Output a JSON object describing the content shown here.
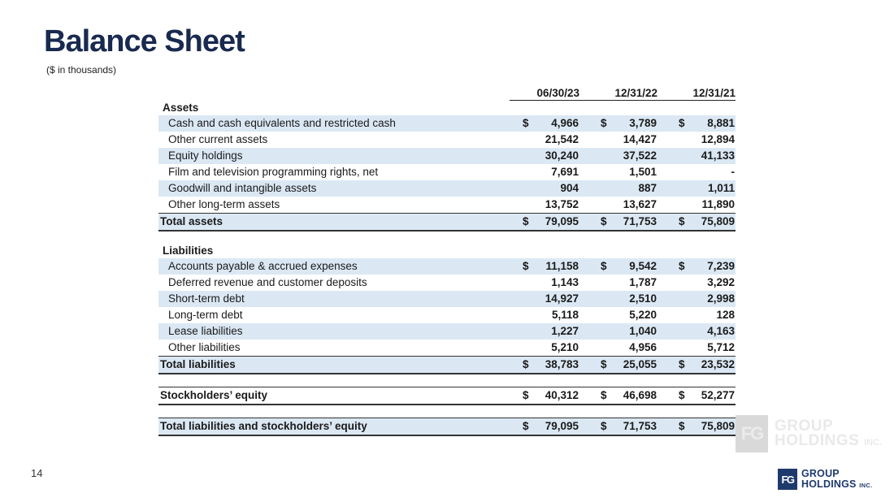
{
  "slide": {
    "title": "Balance Sheet",
    "subtitle": "($ in thousands)",
    "page_number": "14"
  },
  "logo": {
    "mark": "FG",
    "line1": "GROUP",
    "line2": "HOLDINGS",
    "suffix": "INC."
  },
  "colors": {
    "title_navy": "#19294f",
    "logo_navy": "#1e3a6d",
    "row_shade": "#dbe8f4",
    "border_dark": "#333333"
  },
  "table": {
    "columns": [
      "06/30/23",
      "12/31/22",
      "12/31/21"
    ],
    "rows": [
      {
        "type": "section",
        "label": "Assets"
      },
      {
        "type": "data",
        "label": "Cash and cash equivalents and restricted cash",
        "dollar": true,
        "shaded": true,
        "values": [
          "4,966",
          "3,789",
          "8,881"
        ]
      },
      {
        "type": "data",
        "label": "Other current assets",
        "dollar": false,
        "shaded": false,
        "values": [
          "21,542",
          "14,427",
          "12,894"
        ]
      },
      {
        "type": "data",
        "label": "Equity holdings",
        "dollar": false,
        "shaded": true,
        "values": [
          "30,240",
          "37,522",
          "41,133"
        ]
      },
      {
        "type": "data",
        "label": "Film and television programming rights, net",
        "dollar": false,
        "shaded": false,
        "values": [
          "7,691",
          "1,501",
          "-"
        ]
      },
      {
        "type": "data",
        "label": "Goodwill and intangible assets",
        "dollar": false,
        "shaded": true,
        "values": [
          "904",
          "887",
          "1,011"
        ]
      },
      {
        "type": "data",
        "label": "Other long-term assets",
        "dollar": false,
        "shaded": false,
        "values": [
          "13,752",
          "13,627",
          "11,890"
        ]
      },
      {
        "type": "total",
        "label": "Total assets",
        "dollar": true,
        "shaded": true,
        "values": [
          "79,095",
          "71,753",
          "75,809"
        ]
      },
      {
        "type": "spacer"
      },
      {
        "type": "section",
        "label": "Liabilities"
      },
      {
        "type": "data",
        "label": "Accounts payable & accrued expenses",
        "dollar": true,
        "shaded": true,
        "values": [
          "11,158",
          "9,542",
          "7,239"
        ]
      },
      {
        "type": "data",
        "label": "Deferred revenue and customer deposits",
        "dollar": false,
        "shaded": false,
        "values": [
          "1,143",
          "1,787",
          "3,292"
        ]
      },
      {
        "type": "data",
        "label": "Short-term debt",
        "dollar": false,
        "shaded": true,
        "values": [
          "14,927",
          "2,510",
          "2,998"
        ]
      },
      {
        "type": "data",
        "label": "Long-term debt",
        "dollar": false,
        "shaded": false,
        "values": [
          "5,118",
          "5,220",
          "128"
        ]
      },
      {
        "type": "data",
        "label": "Lease liabilities",
        "dollar": false,
        "shaded": true,
        "values": [
          "1,227",
          "1,040",
          "4,163"
        ]
      },
      {
        "type": "data",
        "label": "Other liabilities",
        "dollar": false,
        "shaded": false,
        "values": [
          "5,210",
          "4,956",
          "5,712"
        ]
      },
      {
        "type": "total",
        "label": "Total liabilities",
        "dollar": true,
        "shaded": true,
        "values": [
          "38,783",
          "25,055",
          "23,532"
        ]
      },
      {
        "type": "spacer"
      },
      {
        "type": "total",
        "label": "Stockholders’ equity",
        "dollar": true,
        "shaded": false,
        "values": [
          "40,312",
          "46,698",
          "52,277"
        ]
      },
      {
        "type": "spacer"
      },
      {
        "type": "total",
        "label": "Total liabilities and stockholders’ equity",
        "dollar": true,
        "shaded": true,
        "values": [
          "79,095",
          "71,753",
          "75,809"
        ]
      }
    ]
  }
}
